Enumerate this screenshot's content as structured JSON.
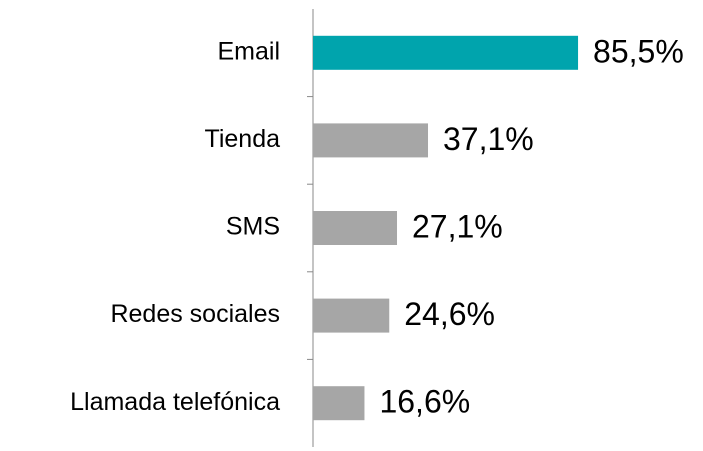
{
  "chart_data": {
    "type": "bar",
    "orientation": "horizontal",
    "categories": [
      "Email",
      "Tienda",
      "SMS",
      "Redes sociales",
      "Llamada telefónica"
    ],
    "values": [
      85.5,
      37.1,
      27.1,
      24.6,
      16.6
    ],
    "value_labels": [
      "85,5%",
      "37,1%",
      "27,1%",
      "24,6%",
      "16,6%"
    ],
    "colors": [
      "#00a4ad",
      "#a6a6a6",
      "#a6a6a6",
      "#a6a6a6",
      "#a6a6a6"
    ]
  }
}
